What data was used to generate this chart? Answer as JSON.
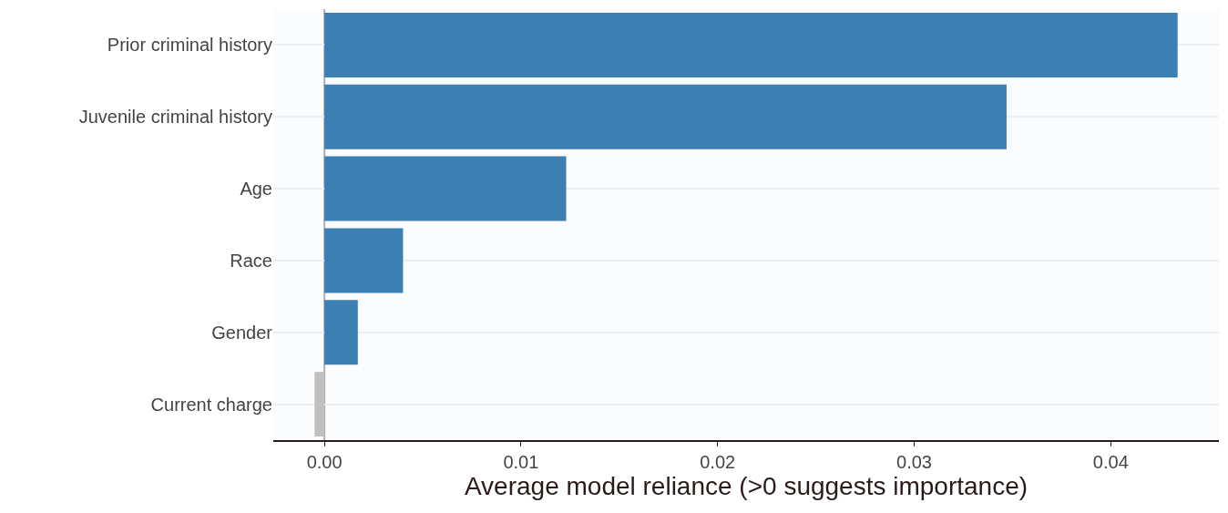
{
  "chart_data": {
    "type": "bar",
    "orientation": "horizontal",
    "xlabel": "Average model reliance (>0 suggests importance)",
    "categories": [
      "Prior criminal history",
      "Juvenile criminal history",
      "Age",
      "Race",
      "Gender",
      "Current charge"
    ],
    "values": [
      0.0434,
      0.0347,
      0.0123,
      0.004,
      0.0017,
      -0.0005
    ],
    "colors": [
      "#3b7fb3",
      "#3b7fb3",
      "#3b7fb3",
      "#3b7fb3",
      "#3b7fb3",
      "#c0c0c0"
    ],
    "xlim": [
      -0.0026,
      0.0455
    ],
    "xticks": [
      {
        "value": 0,
        "label": "0.00"
      },
      0.01,
      0.02,
      0.03,
      0.04
    ],
    "ref_lines": [
      {
        "axis": "x",
        "value": 0,
        "color": "#b0b0b0"
      }
    ],
    "grid": "y"
  }
}
